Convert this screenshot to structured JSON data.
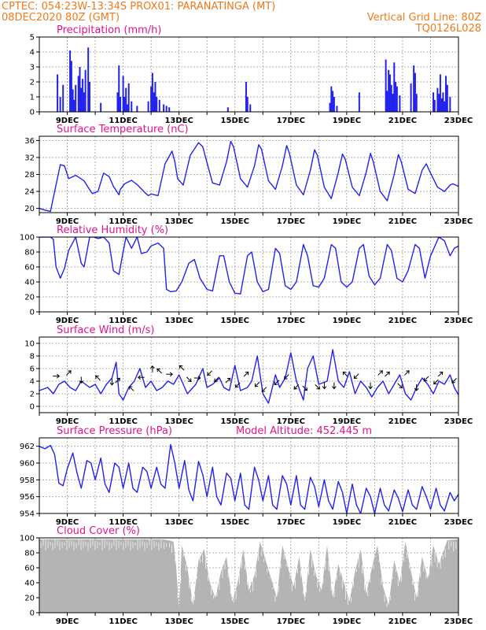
{
  "header": {
    "left_line1": "CPTEC:   054:23W-13:34S   PROX01: PARANATINGA (MT)",
    "left_line2": "08DEC2020 80Z (GMT)",
    "right_line2": "Vertical Grid Line: 80Z",
    "right_line3": "TQ0126L028"
  },
  "colors": {
    "header": "#ee7a1b",
    "title": "#e0148c",
    "series": "#2222ee",
    "cloud": "#b4b4b4"
  },
  "chart_data": [
    {
      "id": "precip",
      "type": "bar",
      "title": "Precipitation (mm/h)",
      "ylim": [
        0,
        5
      ],
      "yticks": [
        0,
        1,
        2,
        3,
        4,
        5
      ],
      "xlim": [
        8.0,
        23.0
      ],
      "xticks": [
        "9DEC",
        "11DEC",
        "13DEC",
        "15DEC",
        "17DEC",
        "19DEC",
        "21DEC",
        "23DEC"
      ],
      "grid": true,
      "x": [
        8.65,
        8.75,
        8.85,
        9.1,
        9.15,
        9.2,
        9.25,
        9.3,
        9.4,
        9.45,
        9.5,
        9.55,
        9.6,
        9.65,
        9.75,
        9.8,
        10.2,
        10.8,
        10.85,
        10.9,
        11.0,
        11.05,
        11.1,
        11.15,
        11.2,
        11.3,
        11.5,
        11.9,
        12.0,
        12.05,
        12.1,
        12.15,
        12.2,
        12.3,
        12.45,
        12.55,
        12.65,
        14.75,
        15.4,
        15.45,
        15.55,
        18.4,
        18.45,
        18.5,
        18.55,
        18.65,
        19.45,
        20.4,
        20.45,
        20.5,
        20.55,
        20.6,
        20.65,
        20.7,
        20.75,
        20.8,
        20.9,
        21.3,
        21.4,
        21.45,
        21.5,
        22.1,
        22.15,
        22.25,
        22.3,
        22.35,
        22.4,
        22.45,
        22.5,
        22.55,
        22.6,
        22.7
      ],
      "values": [
        2.5,
        1.0,
        1.8,
        4.1,
        3.4,
        1.5,
        0.8,
        1.8,
        2.4,
        3.0,
        1.6,
        2.2,
        1.3,
        2.8,
        4.3,
        2.0,
        0.6,
        1.3,
        3.1,
        1.0,
        2.4,
        1.0,
        1.6,
        0.5,
        1.9,
        0.7,
        0.4,
        0.7,
        1.7,
        2.6,
        1.3,
        2.0,
        1.0,
        0.8,
        0.5,
        0.4,
        0.3,
        0.3,
        2.0,
        1.0,
        0.5,
        0.6,
        1.7,
        1.4,
        1.0,
        0.4,
        1.3,
        3.5,
        1.4,
        2.8,
        2.5,
        1.8,
        1.2,
        3.3,
        2.0,
        1.7,
        1.1,
        1.9,
        3.1,
        2.6,
        1.2,
        1.3,
        0.8,
        1.6,
        1.2,
        2.5,
        0.9,
        1.3,
        0.7,
        2.4,
        1.8,
        1.0
      ]
    },
    {
      "id": "temp",
      "type": "line",
      "title": "Surface Temperature (nC)",
      "ylim": [
        19,
        37
      ],
      "yticks": [
        20,
        24,
        28,
        32,
        36
      ],
      "xlim": [
        8.0,
        23.0
      ],
      "xticks": [
        "9DEC",
        "11DEC",
        "13DEC",
        "15DEC",
        "17DEC",
        "19DEC",
        "21DEC",
        "23DEC"
      ],
      "grid": true,
      "x": [
        8.0,
        8.2,
        8.4,
        8.55,
        8.75,
        8.9,
        9.05,
        9.3,
        9.6,
        9.8,
        9.9,
        10.1,
        10.3,
        10.5,
        10.65,
        10.85,
        10.9,
        11.05,
        11.3,
        11.5,
        11.8,
        11.9,
        12.0,
        12.25,
        12.5,
        12.75,
        12.85,
        12.95,
        13.15,
        13.4,
        13.7,
        13.85,
        13.95,
        14.2,
        14.45,
        14.7,
        14.85,
        14.95,
        15.2,
        15.45,
        15.7,
        15.85,
        15.95,
        16.2,
        16.45,
        16.7,
        16.85,
        16.95,
        17.2,
        17.45,
        17.7,
        17.85,
        17.95,
        18.2,
        18.45,
        18.7,
        18.85,
        18.95,
        19.2,
        19.45,
        19.7,
        19.85,
        19.95,
        20.2,
        20.45,
        20.7,
        20.85,
        20.95,
        21.2,
        21.45,
        21.7,
        21.85,
        21.95,
        22.25,
        22.5,
        22.7,
        22.8,
        23.0
      ],
      "values": [
        20.0,
        19.6,
        19.3,
        24.0,
        30.3,
        30.0,
        27.0,
        27.8,
        26.5,
        24.4,
        23.5,
        24.0,
        28.3,
        27.5,
        25.2,
        23.2,
        24.5,
        25.8,
        26.6,
        25.6,
        23.6,
        23.0,
        23.4,
        23.0,
        30.5,
        33.5,
        31.0,
        27.0,
        25.5,
        32.5,
        35.5,
        34.5,
        32.0,
        26.0,
        25.5,
        31.0,
        35.8,
        34.5,
        27.0,
        25.0,
        30.0,
        35.0,
        34.0,
        26.5,
        24.5,
        30.0,
        34.8,
        33.0,
        25.5,
        23.2,
        29.0,
        33.8,
        32.5,
        25.0,
        22.3,
        28.5,
        32.8,
        31.5,
        25.0,
        23.0,
        28.5,
        33.0,
        31.0,
        24.0,
        21.8,
        28.0,
        32.7,
        31.0,
        24.5,
        23.5,
        29.0,
        30.5,
        29.0,
        25.0,
        24.0,
        25.5,
        25.8,
        25.2
      ]
    },
    {
      "id": "rh",
      "type": "line",
      "title": "Relative Humidity (%)",
      "ylim": [
        0,
        100
      ],
      "yticks": [
        0,
        20,
        40,
        60,
        80,
        100
      ],
      "xlim": [
        8.0,
        23.0
      ],
      "xticks": [
        "9DEC",
        "11DEC",
        "13DEC",
        "15DEC",
        "17DEC",
        "19DEC",
        "21DEC",
        "23DEC"
      ],
      "grid": true,
      "x": [
        8.0,
        8.2,
        8.4,
        8.5,
        8.6,
        8.75,
        8.9,
        9.05,
        9.3,
        9.5,
        9.6,
        9.8,
        9.95,
        10.1,
        10.3,
        10.5,
        10.65,
        10.85,
        10.95,
        11.1,
        11.3,
        11.5,
        11.65,
        11.85,
        12.0,
        12.25,
        12.45,
        12.55,
        12.7,
        12.9,
        13.1,
        13.35,
        13.55,
        13.75,
        14.0,
        14.2,
        14.45,
        14.6,
        14.8,
        15.0,
        15.2,
        15.45,
        15.6,
        15.8,
        16.0,
        16.2,
        16.45,
        16.6,
        16.8,
        17.0,
        17.2,
        17.45,
        17.6,
        17.8,
        18.0,
        18.2,
        18.45,
        18.6,
        18.8,
        19.0,
        19.2,
        19.45,
        19.6,
        19.8,
        20.0,
        20.2,
        20.45,
        20.6,
        20.8,
        21.0,
        21.2,
        21.45,
        21.6,
        21.8,
        22.0,
        22.3,
        22.5,
        22.7,
        22.85,
        23.0
      ],
      "values": [
        100,
        100,
        100,
        97,
        60,
        45,
        58,
        82,
        100,
        65,
        60,
        100,
        100,
        98,
        100,
        92,
        55,
        50,
        70,
        100,
        85,
        100,
        78,
        80,
        88,
        92,
        85,
        30,
        27,
        28,
        40,
        65,
        70,
        45,
        30,
        28,
        75,
        75,
        40,
        25,
        24,
        75,
        80,
        40,
        27,
        30,
        85,
        78,
        35,
        30,
        40,
        90,
        75,
        35,
        33,
        45,
        90,
        85,
        40,
        33,
        40,
        85,
        90,
        48,
        36,
        45,
        90,
        82,
        45,
        40,
        55,
        90,
        85,
        45,
        75,
        100,
        95,
        75,
        85,
        88
      ]
    },
    {
      "id": "wind",
      "type": "line",
      "title": "Surface Wind (m/s)",
      "ylim": [
        -1,
        11
      ],
      "yticks": [
        0,
        2,
        4,
        6,
        8,
        10
      ],
      "xlim": [
        8.0,
        23.0
      ],
      "xticks": [
        "9DEC",
        "11DEC",
        "13DEC",
        "15DEC",
        "17DEC",
        "19DEC",
        "21DEC",
        "23DEC"
      ],
      "grid": true,
      "x": [
        8.0,
        8.3,
        8.5,
        8.7,
        8.9,
        9.1,
        9.3,
        9.5,
        9.8,
        10.0,
        10.2,
        10.4,
        10.6,
        10.75,
        10.85,
        11.0,
        11.2,
        11.4,
        11.6,
        11.8,
        12.0,
        12.2,
        12.4,
        12.6,
        12.8,
        13.0,
        13.3,
        13.6,
        13.85,
        14.0,
        14.2,
        14.45,
        14.6,
        14.8,
        15.0,
        15.2,
        15.45,
        15.6,
        15.8,
        16.0,
        16.2,
        16.45,
        16.6,
        16.8,
        17.0,
        17.2,
        17.45,
        17.6,
        17.8,
        18.0,
        18.3,
        18.5,
        18.7,
        18.9,
        19.1,
        19.3,
        19.5,
        19.7,
        19.9,
        20.1,
        20.3,
        20.5,
        20.7,
        20.9,
        21.1,
        21.3,
        21.5,
        21.7,
        21.9,
        22.1,
        22.3,
        22.5,
        22.7,
        22.85,
        23.0
      ],
      "values": [
        2.5,
        3.0,
        2.0,
        3.5,
        4.0,
        3.0,
        2.5,
        4.0,
        3.0,
        3.5,
        2.0,
        3.5,
        4.5,
        7.0,
        2.0,
        1.0,
        3.0,
        4.0,
        6.0,
        3.0,
        4.0,
        2.5,
        3.0,
        4.0,
        3.5,
        5.0,
        2.0,
        3.5,
        6.0,
        3.0,
        3.5,
        4.5,
        3.0,
        2.5,
        6.5,
        2.5,
        3.0,
        4.0,
        8.0,
        2.0,
        0.5,
        5.0,
        3.0,
        4.5,
        8.5,
        4.0,
        1.0,
        6.0,
        8.0,
        3.5,
        4.0,
        9.0,
        4.0,
        3.0,
        5.5,
        2.0,
        4.0,
        3.0,
        1.5,
        3.0,
        4.0,
        2.0,
        3.5,
        5.0,
        2.0,
        1.0,
        3.0,
        4.5,
        3.5,
        2.0,
        4.0,
        3.5,
        5.0,
        3.0,
        1.8
      ],
      "arrows": [
        {
          "x": 8.6,
          "y": 4.8,
          "dir": "E"
        },
        {
          "x": 9.05,
          "y": 5.3,
          "dir": "NE"
        },
        {
          "x": 9.5,
          "y": 4.2,
          "dir": "S"
        },
        {
          "x": 10.1,
          "y": 4.5,
          "dir": "NW"
        },
        {
          "x": 10.6,
          "y": 3.9,
          "dir": "S"
        },
        {
          "x": 10.8,
          "y": 4.1,
          "dir": "NE"
        },
        {
          "x": 11.3,
          "y": 2.8,
          "dir": "NW"
        },
        {
          "x": 11.65,
          "y": 4.6,
          "dir": "W"
        },
        {
          "x": 12.05,
          "y": 5.9,
          "dir": "N"
        },
        {
          "x": 12.3,
          "y": 5.6,
          "dir": "NW"
        },
        {
          "x": 12.65,
          "y": 5.1,
          "dir": "E"
        },
        {
          "x": 13.1,
          "y": 6.1,
          "dir": "NW"
        },
        {
          "x": 13.35,
          "y": 4.3,
          "dir": "SE"
        },
        {
          "x": 13.65,
          "y": 4.5,
          "dir": "E"
        },
        {
          "x": 14.1,
          "y": 5.3,
          "dir": "SW"
        },
        {
          "x": 14.35,
          "y": 4.3,
          "dir": "SW"
        },
        {
          "x": 14.75,
          "y": 4.1,
          "dir": "NE"
        },
        {
          "x": 15.1,
          "y": 3.4,
          "dir": "SW"
        },
        {
          "x": 15.4,
          "y": 5.1,
          "dir": "NE"
        },
        {
          "x": 15.8,
          "y": 3.5,
          "dir": "SW"
        },
        {
          "x": 16.05,
          "y": 2.7,
          "dir": "SW"
        },
        {
          "x": 16.5,
          "y": 3.8,
          "dir": "SW"
        },
        {
          "x": 16.85,
          "y": 4.7,
          "dir": "SW"
        },
        {
          "x": 17.2,
          "y": 3.1,
          "dir": "SW"
        },
        {
          "x": 17.5,
          "y": 2.9,
          "dir": "SE"
        },
        {
          "x": 17.95,
          "y": 3.1,
          "dir": "SE"
        },
        {
          "x": 18.2,
          "y": 3.3,
          "dir": "S"
        },
        {
          "x": 18.55,
          "y": 3.3,
          "dir": "S"
        },
        {
          "x": 18.95,
          "y": 5.1,
          "dir": "NW"
        },
        {
          "x": 19.35,
          "y": 4.8,
          "dir": "SW"
        },
        {
          "x": 19.85,
          "y": 3.3,
          "dir": "S"
        },
        {
          "x": 20.2,
          "y": 5.3,
          "dir": "NE"
        },
        {
          "x": 20.45,
          "y": 5.1,
          "dir": "NE"
        },
        {
          "x": 20.9,
          "y": 3.3,
          "dir": "SE"
        },
        {
          "x": 21.15,
          "y": 5.3,
          "dir": "NE"
        },
        {
          "x": 21.5,
          "y": 3.0,
          "dir": "S"
        },
        {
          "x": 21.85,
          "y": 4.4,
          "dir": "SW"
        },
        {
          "x": 22.2,
          "y": 3.9,
          "dir": "SW"
        },
        {
          "x": 22.35,
          "y": 5.1,
          "dir": "NE"
        },
        {
          "x": 22.85,
          "y": 4.1,
          "dir": "SW"
        }
      ]
    },
    {
      "id": "pres",
      "type": "line",
      "title": "Surface Pressure (hPa)",
      "subtitle": "Model Altitude: 452.445  m",
      "ylim": [
        954,
        963
      ],
      "yticks": [
        954,
        956,
        958,
        960,
        962
      ],
      "xlim": [
        8.0,
        23.0
      ],
      "xticks": [
        "9DEC",
        "11DEC",
        "13DEC",
        "15DEC",
        "17DEC",
        "19DEC",
        "21DEC",
        "23DEC"
      ],
      "grid": true,
      "x": [
        8.0,
        8.2,
        8.4,
        8.55,
        8.7,
        8.85,
        9.0,
        9.2,
        9.35,
        9.5,
        9.7,
        9.85,
        10.0,
        10.2,
        10.35,
        10.5,
        10.7,
        10.85,
        11.0,
        11.2,
        11.35,
        11.5,
        11.7,
        11.85,
        12.0,
        12.2,
        12.35,
        12.5,
        12.7,
        12.85,
        13.0,
        13.2,
        13.35,
        13.5,
        13.7,
        13.85,
        14.0,
        14.2,
        14.35,
        14.5,
        14.7,
        14.85,
        15.0,
        15.2,
        15.35,
        15.5,
        15.7,
        15.85,
        16.0,
        16.2,
        16.35,
        16.5,
        16.7,
        16.85,
        17.0,
        17.2,
        17.35,
        17.5,
        17.7,
        17.85,
        18.0,
        18.2,
        18.35,
        18.5,
        18.7,
        18.85,
        19.0,
        19.2,
        19.35,
        19.5,
        19.7,
        19.85,
        20.0,
        20.2,
        20.35,
        20.5,
        20.7,
        20.85,
        21.0,
        21.2,
        21.35,
        21.5,
        21.7,
        21.85,
        22.0,
        22.2,
        22.35,
        22.5,
        22.7,
        22.85,
        23.0
      ],
      "values": [
        962.0,
        961.7,
        962.1,
        961.0,
        957.6,
        957.3,
        959.3,
        961.2,
        958.8,
        957.0,
        960.3,
        960.0,
        958.0,
        960.6,
        957.5,
        956.5,
        960.0,
        959.5,
        957.0,
        960.0,
        957.0,
        956.5,
        959.5,
        959.0,
        957.0,
        959.5,
        957.5,
        957.0,
        962.2,
        960.0,
        957.0,
        960.3,
        956.8,
        955.5,
        960.2,
        958.6,
        956.0,
        959.5,
        956.0,
        955.0,
        958.8,
        958.2,
        955.5,
        958.8,
        955.0,
        954.5,
        959.5,
        958.0,
        955.5,
        958.5,
        955.0,
        954.5,
        958.5,
        957.5,
        955.0,
        958.5,
        955.0,
        954.5,
        958.3,
        957.2,
        954.8,
        958.0,
        955.5,
        954.5,
        957.8,
        956.5,
        954.0,
        957.5,
        955.0,
        954.0,
        957.0,
        956.0,
        954.0,
        957.0,
        955.0,
        954.3,
        956.8,
        955.8,
        954.2,
        956.8,
        955.0,
        954.5,
        957.2,
        956.0,
        954.5,
        957.0,
        955.0,
        954.3,
        956.5,
        955.5,
        956.3
      ]
    },
    {
      "id": "cloud",
      "type": "area",
      "title": "Cloud Cover (%)",
      "ylim": [
        0,
        100
      ],
      "yticks": [
        0,
        20,
        40,
        60,
        80,
        100
      ],
      "xlim": [
        8.0,
        23.0
      ],
      "xticks": [
        "9DEC",
        "11DEC",
        "13DEC",
        "15DEC",
        "17DEC",
        "19DEC",
        "21DEC",
        "23DEC"
      ],
      "grid": true,
      "x": [
        8.0,
        12.4,
        12.6,
        12.8,
        12.9,
        13.0,
        13.1,
        13.3,
        13.5,
        13.7,
        13.9,
        14.1,
        14.3,
        14.5,
        14.7,
        14.9,
        15.1,
        15.3,
        15.5,
        15.7,
        15.9,
        16.1,
        16.3,
        16.5,
        16.7,
        16.9,
        17.1,
        17.3,
        17.5,
        17.7,
        17.9,
        18.1,
        18.3,
        18.5,
        18.7,
        18.9,
        19.1,
        19.3,
        19.5,
        19.7,
        19.9,
        20.1,
        20.3,
        20.5,
        20.7,
        20.9,
        21.1,
        21.3,
        21.5,
        21.7,
        21.9,
        22.1,
        22.3,
        22.6,
        23.0
      ],
      "values": [
        98,
        98,
        97,
        95,
        60,
        5,
        90,
        60,
        10,
        70,
        85,
        40,
        20,
        55,
        75,
        15,
        40,
        85,
        30,
        50,
        95,
        70,
        45,
        20,
        90,
        60,
        35,
        75,
        15,
        85,
        50,
        30,
        90,
        20,
        65,
        40,
        15,
        55,
        85,
        25,
        60,
        90,
        35,
        10,
        70,
        40,
        95,
        55,
        20,
        75,
        45,
        90,
        65,
        97,
        98
      ]
    }
  ]
}
